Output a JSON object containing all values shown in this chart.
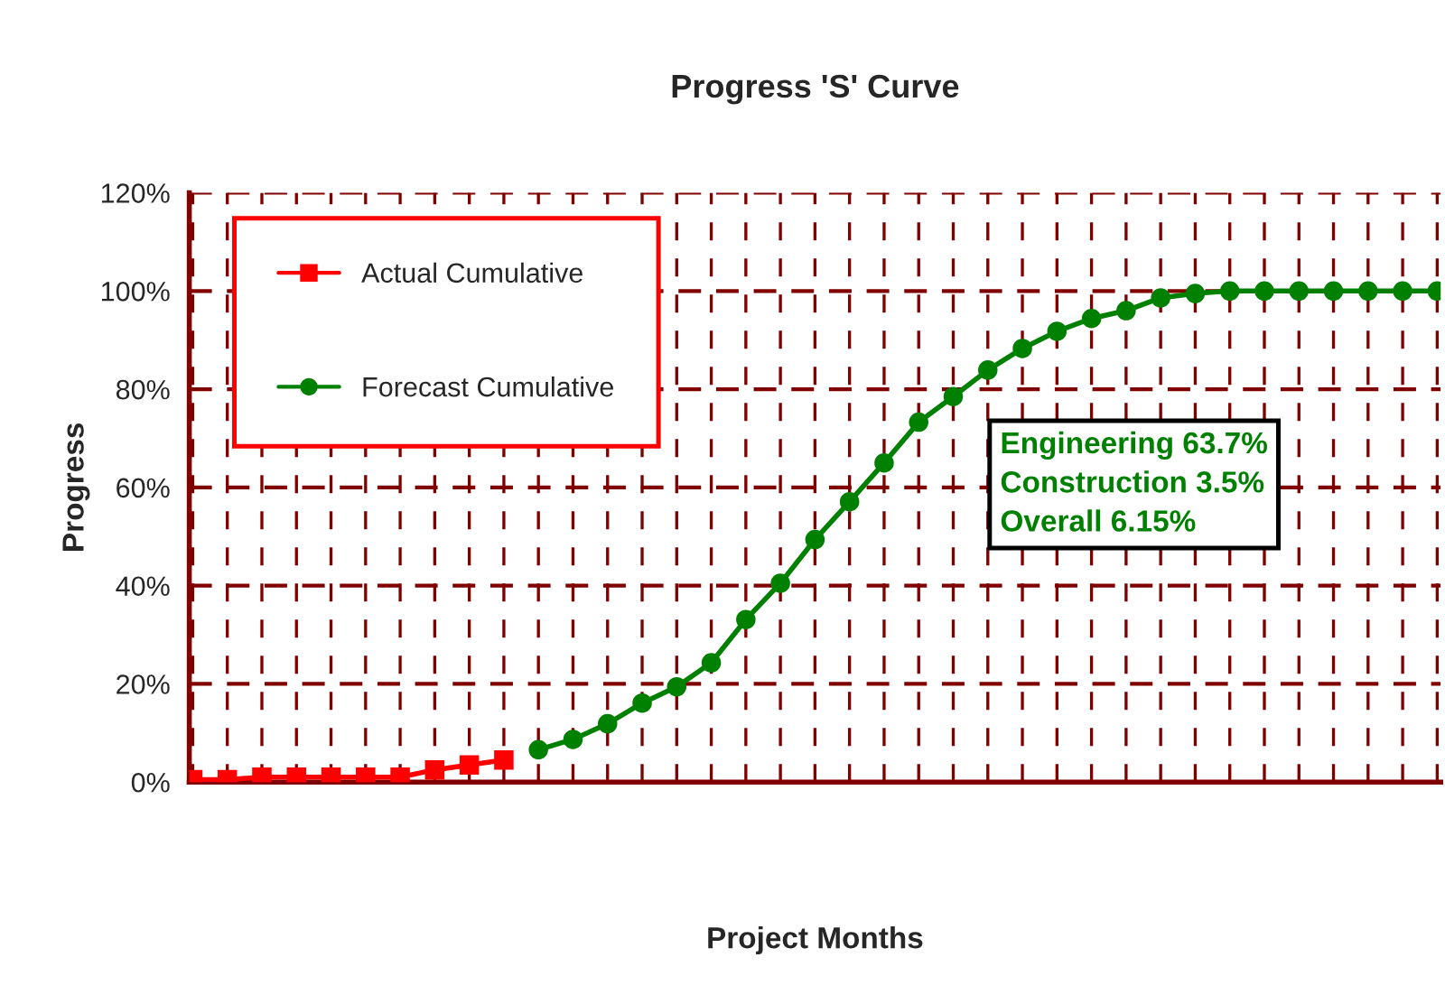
{
  "chart_data": {
    "type": "line",
    "title": "Progress 'S' Curve",
    "xlabel": "Project Months",
    "ylabel": "Progress",
    "categories": [
      null,
      null,
      null,
      null,
      null,
      null,
      null,
      null,
      null,
      null,
      null,
      null,
      null,
      null,
      null,
      null,
      null,
      null,
      null,
      null,
      null,
      null,
      null,
      null,
      null,
      null,
      null,
      null,
      null,
      null,
      null,
      null,
      null,
      null,
      null,
      null,
      null
    ],
    "series": [
      {
        "name": "Actual Cumulative",
        "color": "#ff0000",
        "marker": "square",
        "values": [
          0.5,
          0.5,
          1,
          1,
          1,
          1,
          1,
          2.5,
          3.5,
          4.5,
          null,
          null,
          null,
          null,
          null,
          null,
          null,
          null,
          null,
          null,
          null,
          null,
          null,
          null,
          null,
          null,
          null,
          null,
          null,
          null,
          null,
          null,
          null,
          null,
          null,
          null,
          null
        ]
      },
      {
        "name": "Forecast Cumulative",
        "color": "#008000",
        "marker": "circle",
        "values": [
          null,
          null,
          null,
          null,
          null,
          null,
          null,
          null,
          null,
          null,
          6.6,
          8.7,
          11.9,
          16.1,
          19.4,
          24.3,
          33.1,
          40.5,
          49.4,
          57.1,
          65,
          73.3,
          78.5,
          83.9,
          88.3,
          91.8,
          94.4,
          96,
          98.6,
          99.5,
          100,
          100,
          100,
          100,
          100,
          100,
          100
        ]
      }
    ],
    "ylim": [
      0,
      120
    ],
    "yticks": [
      {
        "value": 0,
        "label": "0%"
      },
      {
        "value": 20,
        "label": "20%"
      },
      {
        "value": 40,
        "label": "40%"
      },
      {
        "value": 60,
        "label": "60%"
      },
      {
        "value": 80,
        "label": "80%"
      },
      {
        "value": 100,
        "label": "100%"
      },
      {
        "value": 120,
        "label": "120%"
      }
    ],
    "grid": true,
    "legend": "top left",
    "annotations": [
      "Engineering 63.7%\nConstruction 3.5%\nOverall 6.15%"
    ]
  }
}
